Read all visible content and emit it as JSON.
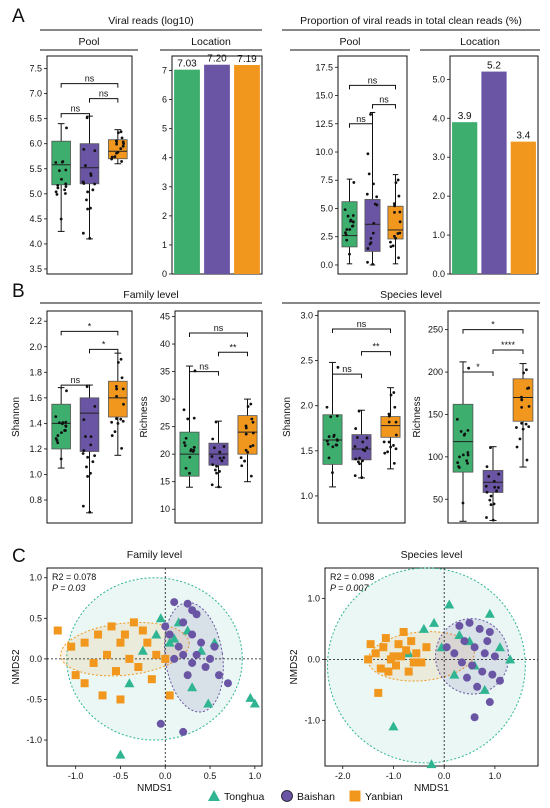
{
  "colors": {
    "green": "#3DAE6E",
    "purple": "#6A55A5",
    "orange": "#F2971E",
    "teal_point": "#2FB592"
  },
  "panel_letters": [
    "A",
    "B",
    "C"
  ],
  "row_a": {
    "left_title": "Viral reads (log10)",
    "right_title": "Proportion of viral reads in total clean reads (%)"
  },
  "row_b": {
    "left_title": "Family level",
    "right_title": "Species level"
  },
  "sub_pool": "Pool",
  "sub_location": "Location",
  "legend": {
    "items": [
      {
        "label": "Tonghua",
        "color": "#2FB592",
        "shape": "triangle"
      },
      {
        "label": "Baishan",
        "color": "#6A55A5",
        "shape": "circle"
      },
      {
        "label": "Yanbian",
        "color": "#F2971E",
        "shape": "square"
      }
    ]
  },
  "chart_data": [
    {
      "id": "a1",
      "type": "box",
      "subtitle": "Pool",
      "ylabel": "",
      "ylim": [
        3.4,
        7.75
      ],
      "yticks": [
        "3.5",
        "4.0",
        "4.5",
        "5.0",
        "5.5",
        "6.0",
        "6.5",
        "7.0",
        "7.5"
      ],
      "groups": [
        {
          "name": "Tonghua",
          "color": "#3DAE6E",
          "q1": 5.18,
          "median": 5.58,
          "q3": 6.05,
          "wlo": 4.25,
          "whi": 6.4
        },
        {
          "name": "Baishan",
          "color": "#6A55A5",
          "q1": 5.2,
          "median": 5.52,
          "q3": 6.0,
          "wlo": 4.1,
          "whi": 6.55
        },
        {
          "name": "Yanbian",
          "color": "#F2971E",
          "q1": 5.7,
          "median": 5.85,
          "q3": 6.08,
          "wlo": 5.6,
          "whi": 6.28
        }
      ],
      "brackets": [
        {
          "from": 0,
          "to": 2,
          "label": "ns",
          "y": 7.2
        },
        {
          "from": 1,
          "to": 2,
          "label": "ns",
          "y": 6.9
        },
        {
          "from": 0,
          "to": 1,
          "label": "ns",
          "y": 6.6
        }
      ]
    },
    {
      "id": "a2",
      "type": "bar",
      "subtitle": "Location",
      "ylim": [
        0,
        7.5
      ],
      "yticks": [
        "0",
        "1",
        "2",
        "3",
        "4",
        "5",
        "6",
        "7"
      ],
      "categories": [
        "Tonghua",
        "Baishan",
        "Yanbian"
      ],
      "values": [
        7.03,
        7.2,
        7.19
      ],
      "labels": [
        "7.03",
        "7.20",
        "7.19"
      ]
    },
    {
      "id": "a3",
      "type": "box",
      "subtitle": "Pool",
      "ylabel": "",
      "ylim": [
        -0.8,
        18.5
      ],
      "yticks": [
        "0.0",
        "2.5",
        "5.0",
        "7.5",
        "10.0",
        "12.5",
        "15.0",
        "17.5"
      ],
      "groups": [
        {
          "name": "Tonghua",
          "color": "#3DAE6E",
          "q1": 1.6,
          "median": 2.6,
          "q3": 5.6,
          "wlo": 0.1,
          "whi": 7.6
        },
        {
          "name": "Baishan",
          "color": "#6A55A5",
          "q1": 1.2,
          "median": 3.6,
          "q3": 5.8,
          "wlo": 0.0,
          "whi": 13.5
        },
        {
          "name": "Yanbian",
          "color": "#F2971E",
          "q1": 2.3,
          "median": 3.1,
          "q3": 5.2,
          "wlo": 0.1,
          "whi": 8.0
        }
      ],
      "brackets": [
        {
          "from": 0,
          "to": 2,
          "label": "ns",
          "y": 15.9
        },
        {
          "from": 1,
          "to": 2,
          "label": "ns",
          "y": 14.2
        },
        {
          "from": 0,
          "to": 1,
          "label": "ns",
          "y": 12.5
        }
      ]
    },
    {
      "id": "a4",
      "type": "bar",
      "subtitle": "Location",
      "ylim": [
        0,
        5.6
      ],
      "yticks": [
        "0.0",
        "1.0",
        "2.0",
        "3.0",
        "4.0",
        "5.0"
      ],
      "categories": [
        "Tonghua",
        "Baishan",
        "Yanbian"
      ],
      "values": [
        3.9,
        5.2,
        3.4
      ],
      "labels": [
        "3.9",
        "5.2",
        "3.4"
      ]
    },
    {
      "id": "b1",
      "type": "box",
      "ylabel": "Shannon",
      "ylim": [
        0.62,
        2.28
      ],
      "yticks": [
        "0.8",
        "1.0",
        "1.2",
        "1.4",
        "1.6",
        "1.8",
        "2.0",
        "2.2"
      ],
      "groups": [
        {
          "name": "Tonghua",
          "color": "#3DAE6E",
          "q1": 1.2,
          "median": 1.4,
          "q3": 1.55,
          "wlo": 1.05,
          "whi": 1.68
        },
        {
          "name": "Baishan",
          "color": "#6A55A5",
          "q1": 1.18,
          "median": 1.48,
          "q3": 1.6,
          "wlo": 0.7,
          "whi": 1.7
        },
        {
          "name": "Yanbian",
          "color": "#F2971E",
          "q1": 1.45,
          "median": 1.6,
          "q3": 1.73,
          "wlo": 1.15,
          "whi": 1.95
        }
      ],
      "brackets": [
        {
          "from": 0,
          "to": 2,
          "label": "*",
          "y": 2.12
        },
        {
          "from": 1,
          "to": 2,
          "label": "*",
          "y": 1.98
        },
        {
          "from": 0,
          "to": 1,
          "label": "ns",
          "y": 1.7
        }
      ]
    },
    {
      "id": "b2",
      "type": "box",
      "ylabel": "Richness",
      "ylim": [
        7.5,
        46
      ],
      "yticks": [
        "10",
        "15",
        "20",
        "25",
        "30",
        "35",
        "40",
        "45"
      ],
      "groups": [
        {
          "name": "Tonghua",
          "color": "#3DAE6E",
          "q1": 16,
          "median": 20,
          "q3": 24,
          "wlo": 14,
          "whi": 36
        },
        {
          "name": "Baishan",
          "color": "#6A55A5",
          "q1": 18,
          "median": 20,
          "q3": 22,
          "wlo": 14,
          "whi": 26
        },
        {
          "name": "Yanbian",
          "color": "#F2971E",
          "q1": 20,
          "median": 24,
          "q3": 27,
          "wlo": 15,
          "whi": 30
        }
      ],
      "brackets": [
        {
          "from": 0,
          "to": 2,
          "label": "ns",
          "y": 42
        },
        {
          "from": 1,
          "to": 2,
          "label": "**",
          "y": 38.5
        },
        {
          "from": 0,
          "to": 1,
          "label": "ns",
          "y": 35
        }
      ]
    },
    {
      "id": "b3",
      "type": "box",
      "ylabel": "Shannon",
      "ylim": [
        0.7,
        3.05
      ],
      "yticks": [
        "1.0",
        "1.5",
        "2.0",
        "2.5",
        "3.0"
      ],
      "groups": [
        {
          "name": "Tonghua",
          "color": "#3DAE6E",
          "q1": 1.35,
          "median": 1.62,
          "q3": 1.9,
          "wlo": 1.1,
          "whi": 2.48
        },
        {
          "name": "Baishan",
          "color": "#6A55A5",
          "q1": 1.4,
          "median": 1.52,
          "q3": 1.68,
          "wlo": 1.2,
          "whi": 1.95
        },
        {
          "name": "Yanbian",
          "color": "#F2971E",
          "q1": 1.65,
          "median": 1.78,
          "q3": 1.88,
          "wlo": 1.3,
          "whi": 2.2
        }
      ],
      "brackets": [
        {
          "from": 0,
          "to": 2,
          "label": "ns",
          "y": 2.85
        },
        {
          "from": 1,
          "to": 2,
          "label": "**",
          "y": 2.6
        },
        {
          "from": 0,
          "to": 1,
          "label": "ns",
          "y": 2.35
        }
      ]
    },
    {
      "id": "b4",
      "type": "box",
      "ylabel": "Richness",
      "ylim": [
        22,
        272
      ],
      "yticks": [
        "50",
        "100",
        "150",
        "200",
        "250"
      ],
      "groups": [
        {
          "name": "Tonghua",
          "color": "#3DAE6E",
          "q1": 82,
          "median": 118,
          "q3": 162,
          "wlo": 24,
          "whi": 212
        },
        {
          "name": "Baishan",
          "color": "#6A55A5",
          "q1": 58,
          "median": 70,
          "q3": 84,
          "wlo": 25,
          "whi": 112
        },
        {
          "name": "Yanbian",
          "color": "#F2971E",
          "q1": 142,
          "median": 170,
          "q3": 192,
          "wlo": 88,
          "whi": 210
        }
      ],
      "brackets": [
        {
          "from": 0,
          "to": 2,
          "label": "*",
          "y": 250
        },
        {
          "from": 1,
          "to": 2,
          "label": "****",
          "y": 226
        },
        {
          "from": 0,
          "to": 1,
          "label": "*",
          "y": 200
        }
      ]
    },
    {
      "id": "c1",
      "type": "scatter",
      "title": "Family level",
      "xlabel": "NMDS1",
      "ylabel": "NMDS2",
      "xlim": [
        -1.32,
        1.08
      ],
      "ylim": [
        -1.32,
        1.12
      ],
      "xticks": [
        "-1.0",
        "-0.5",
        "0.0",
        "0.5",
        "1.0"
      ],
      "yticks": [
        "-1.0",
        "-0.5",
        "0.0",
        "0.5",
        "1.0"
      ],
      "stats": {
        "r2": "R2 = 0.078",
        "p": "P = 0.03"
      },
      "ellipses": [
        {
          "group": "Tonghua",
          "cx": -0.12,
          "cy": 0.0,
          "rx": 0.98,
          "ry": 1.0,
          "rot": 0
        },
        {
          "group": "Yanbian",
          "cx": -0.45,
          "cy": 0.12,
          "rx": 0.72,
          "ry": 0.32,
          "rot": 6
        },
        {
          "group": "Baishan",
          "cx": 0.32,
          "cy": 0.02,
          "rx": 0.32,
          "ry": 0.68,
          "rot": 8
        }
      ],
      "series": [
        {
          "name": "Tonghua",
          "shape": "triangle",
          "points": [
            [
              -0.5,
              -1.18
            ],
            [
              1.0,
              -0.55
            ],
            [
              0.95,
              -0.48
            ],
            [
              0.15,
              0.45
            ],
            [
              0.25,
              0.35
            ],
            [
              -0.1,
              0.3
            ],
            [
              0.1,
              0.25
            ],
            [
              -0.25,
              0.1
            ],
            [
              0.05,
              0.2
            ],
            [
              0.4,
              0.1
            ],
            [
              0.55,
              0.2
            ],
            [
              0.48,
              -0.55
            ],
            [
              -0.05,
              0.5
            ],
            [
              0.3,
              -0.35
            ],
            [
              -0.4,
              -0.3
            ]
          ]
        },
        {
          "name": "Baishan",
          "shape": "circle",
          "points": [
            [
              0.1,
              0.7
            ],
            [
              0.25,
              0.68
            ],
            [
              0.3,
              0.6
            ],
            [
              0.35,
              0.55
            ],
            [
              0.2,
              0.45
            ],
            [
              0.3,
              0.3
            ],
            [
              0.4,
              0.2
            ],
            [
              0.55,
              0.15
            ],
            [
              0.15,
              0.15
            ],
            [
              0.2,
              0.05
            ],
            [
              0.35,
              0.05
            ],
            [
              0.5,
              0.0
            ],
            [
              0.3,
              -0.05
            ],
            [
              0.1,
              0.0
            ],
            [
              0.45,
              -0.1
            ],
            [
              0.6,
              -0.2
            ],
            [
              0.25,
              -0.2
            ],
            [
              -0.05,
              -0.8
            ],
            [
              0.2,
              -0.9
            ],
            [
              0.7,
              -0.3
            ],
            [
              0.05,
              0.3
            ],
            [
              0.0,
              0.4
            ]
          ]
        },
        {
          "name": "Yanbian",
          "shape": "square",
          "points": [
            [
              -1.2,
              0.35
            ],
            [
              -1.05,
              0.15
            ],
            [
              -0.9,
              0.2
            ],
            [
              -0.75,
              0.3
            ],
            [
              -0.6,
              0.4
            ],
            [
              -0.5,
              0.2
            ],
            [
              -0.4,
              0.0
            ],
            [
              -0.3,
              -0.1
            ],
            [
              -0.55,
              -0.15
            ],
            [
              -0.8,
              -0.05
            ],
            [
              -0.65,
              0.05
            ],
            [
              -0.45,
              0.3
            ],
            [
              -0.2,
              0.2
            ],
            [
              -0.1,
              0.05
            ],
            [
              0.0,
              0.0
            ],
            [
              -0.9,
              -0.3
            ],
            [
              -0.7,
              -0.45
            ],
            [
              -0.5,
              -0.5
            ],
            [
              -1.0,
              -0.2
            ],
            [
              -0.25,
              0.35
            ],
            [
              -0.35,
              0.45
            ],
            [
              -0.15,
              -0.25
            ],
            [
              0.05,
              -0.45
            ]
          ]
        }
      ]
    },
    {
      "id": "c2",
      "type": "scatter",
      "title": "Species level",
      "xlabel": "NMDS1",
      "ylabel": "NMDS2",
      "xlim": [
        -2.35,
        1.85
      ],
      "ylim": [
        -1.75,
        1.5
      ],
      "xticks": [
        "-2.0",
        "-1.0",
        "0.0",
        "1.0"
      ],
      "yticks": [
        "-1.0",
        "0.0",
        "1.0"
      ],
      "stats": {
        "r2": "R2 = 0.098",
        "p": "P = 0.007"
      },
      "ellipses": [
        {
          "group": "Tonghua",
          "cx": -0.35,
          "cy": -0.1,
          "rx": 1.95,
          "ry": 1.6,
          "rot": 0
        },
        {
          "group": "Yanbian",
          "cx": -0.45,
          "cy": 0.05,
          "rx": 1.05,
          "ry": 0.4,
          "rot": 5
        },
        {
          "group": "Baishan",
          "cx": 0.55,
          "cy": 0.05,
          "rx": 0.72,
          "ry": 0.62,
          "rot": 10
        }
      ],
      "series": [
        {
          "name": "Tonghua",
          "shape": "triangle",
          "points": [
            [
              -0.25,
              -1.72
            ],
            [
              -1.0,
              -1.1
            ],
            [
              0.1,
              0.9
            ],
            [
              -0.2,
              0.6
            ],
            [
              -0.4,
              0.5
            ],
            [
              0.3,
              0.4
            ],
            [
              0.5,
              0.3
            ],
            [
              0.9,
              0.75
            ],
            [
              1.1,
              0.2
            ],
            [
              1.3,
              0.0
            ],
            [
              0.8,
              -0.5
            ],
            [
              -0.05,
              0.2
            ],
            [
              -0.7,
              0.1
            ],
            [
              0.2,
              -0.25
            ],
            [
              0.6,
              -0.1
            ]
          ]
        },
        {
          "name": "Baishan",
          "shape": "circle",
          "points": [
            [
              0.3,
              0.55
            ],
            [
              0.5,
              0.6
            ],
            [
              0.7,
              0.5
            ],
            [
              0.9,
              0.45
            ],
            [
              0.4,
              0.3
            ],
            [
              0.6,
              0.2
            ],
            [
              0.8,
              0.1
            ],
            [
              1.0,
              0.05
            ],
            [
              0.2,
              0.1
            ],
            [
              0.35,
              -0.05
            ],
            [
              0.55,
              -0.1
            ],
            [
              0.75,
              -0.2
            ],
            [
              0.95,
              -0.25
            ],
            [
              0.45,
              -0.3
            ],
            [
              0.65,
              -0.45
            ],
            [
              0.85,
              0.3
            ],
            [
              0.05,
              0.2
            ],
            [
              1.1,
              -0.35
            ],
            [
              0.9,
              -0.7
            ],
            [
              0.6,
              -0.95
            ]
          ]
        },
        {
          "name": "Yanbian",
          "shape": "square",
          "points": [
            [
              -1.5,
              0.0
            ],
            [
              -1.35,
              0.1
            ],
            [
              -1.2,
              0.2
            ],
            [
              -1.05,
              0.0
            ],
            [
              -0.95,
              -0.1
            ],
            [
              -0.85,
              0.05
            ],
            [
              -0.75,
              0.15
            ],
            [
              -0.65,
              0.3
            ],
            [
              -0.55,
              0.1
            ],
            [
              -0.45,
              -0.05
            ],
            [
              -1.1,
              -0.2
            ],
            [
              -1.25,
              -0.15
            ],
            [
              -0.9,
              0.25
            ],
            [
              -0.7,
              -0.2
            ],
            [
              -0.35,
              0.2
            ],
            [
              -1.45,
              0.25
            ],
            [
              -1.15,
              0.35
            ],
            [
              -0.8,
              0.45
            ],
            [
              -1.3,
              -0.55
            ],
            [
              -1.0,
              0.05
            ],
            [
              -0.6,
              -0.05
            ]
          ]
        }
      ]
    }
  ]
}
